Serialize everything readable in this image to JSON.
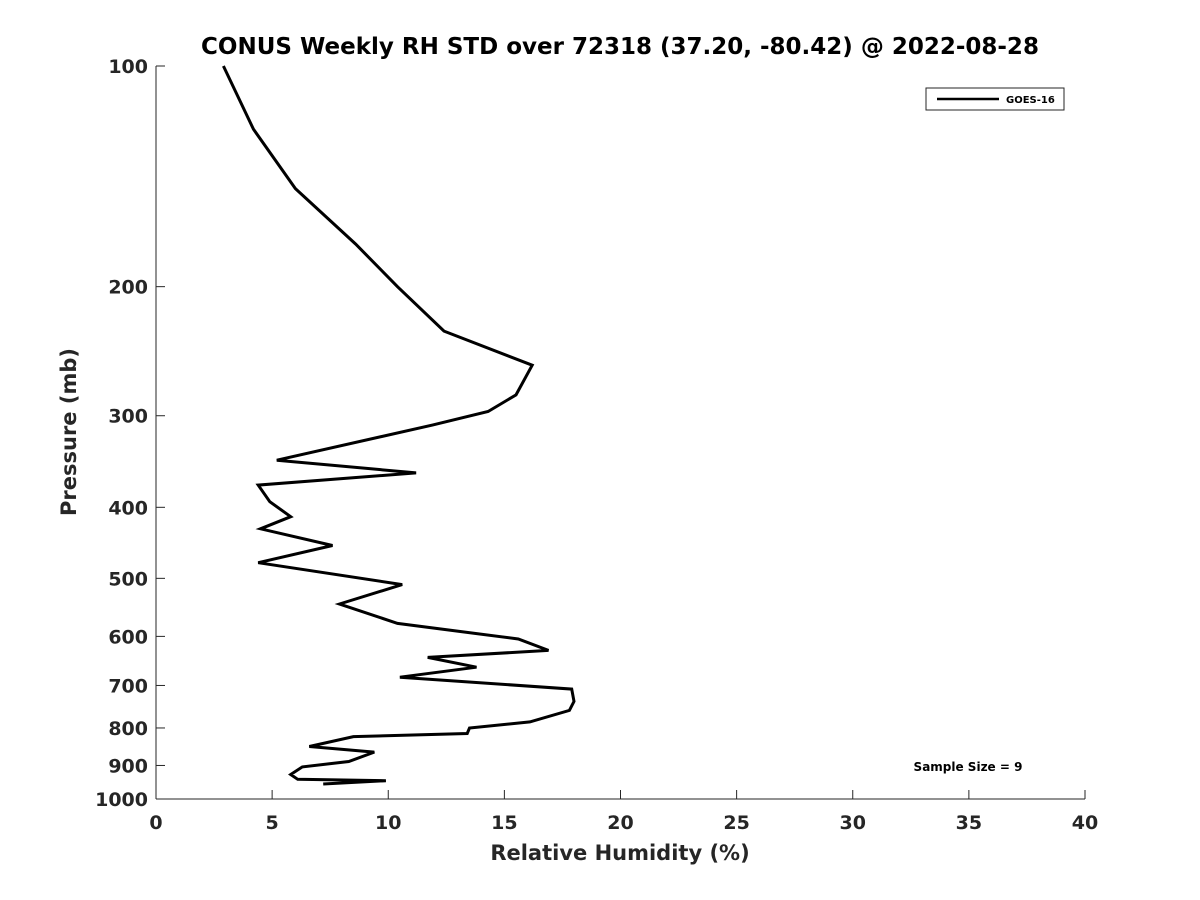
{
  "chart_data": {
    "type": "line",
    "title": "CONUS Weekly RH STD over 72318 (37.20, -80.42) @ 2022-08-28",
    "xlabel": "Relative Humidity (%)",
    "ylabel": "Pressure (mb)",
    "xlim": [
      0,
      40
    ],
    "ylim": [
      100,
      1000
    ],
    "y_scale": "log",
    "y_reversed": true,
    "xticks": [
      0,
      5,
      10,
      15,
      20,
      25,
      30,
      35,
      40
    ],
    "yticks": [
      100,
      200,
      300,
      400,
      500,
      600,
      700,
      800,
      900,
      1000
    ],
    "grid": false,
    "legend_position": "top-right",
    "annotation": "Sample Size = 9",
    "series": [
      {
        "name": "GOES-16",
        "color": "#000000",
        "x": [
          2.9,
          4.2,
          6.0,
          8.6,
          10.4,
          12.4,
          16.2,
          15.5,
          14.3,
          11.9,
          5.2,
          11.2,
          4.4,
          4.9,
          5.8,
          4.5,
          7.6,
          4.4,
          10.6,
          7.9,
          10.4,
          15.6,
          16.9,
          11.7,
          13.8,
          10.5,
          17.9,
          18.0,
          17.8,
          16.1,
          13.5,
          13.4,
          8.5,
          6.6,
          9.4,
          8.3,
          6.3,
          5.8,
          6.1,
          9.9,
          7.2
        ],
        "y": [
          100,
          122,
          147,
          175,
          200,
          230,
          256,
          281,
          296,
          309,
          345,
          359,
          373,
          393,
          412,
          428,
          451,
          476,
          510,
          542,
          576,
          605,
          627,
          641,
          661,
          682,
          708,
          736,
          757,
          785,
          800,
          814,
          822,
          848,
          863,
          889,
          904,
          926,
          940,
          944,
          954
        ]
      }
    ]
  }
}
